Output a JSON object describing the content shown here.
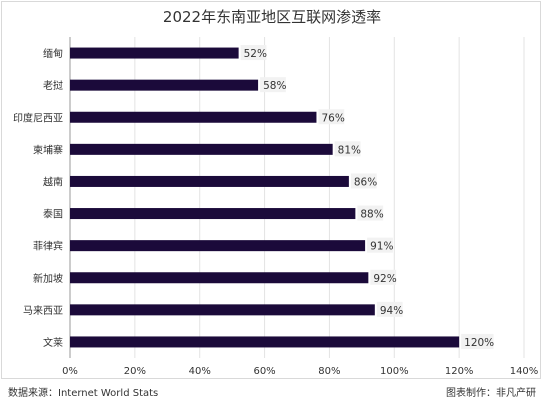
{
  "chart_data": {
    "type": "bar",
    "orientation": "horizontal",
    "title": "2022年东南亚地区互联网渗透率",
    "categories": [
      "缅甸",
      "老挝",
      "印度尼西亚",
      "柬埔寨",
      "越南",
      "泰国",
      "菲律宾",
      "新加坡",
      "马来西亚",
      "文莱"
    ],
    "values": [
      52,
      58,
      76,
      81,
      86,
      88,
      91,
      92,
      94,
      120
    ],
    "value_labels": [
      "52%",
      "58%",
      "76%",
      "81%",
      "86%",
      "88%",
      "91%",
      "92%",
      "94%",
      "120%"
    ],
    "xlim": [
      0,
      140
    ],
    "xticks": [
      "0%",
      "20%",
      "40%",
      "60%",
      "80%",
      "100%",
      "120%",
      "140%"
    ],
    "grid": true,
    "bar_color": "#1b0a3a"
  },
  "footer": {
    "source": "数据来源：Internet World Stats",
    "credit": "图表制作：非凡产研"
  }
}
